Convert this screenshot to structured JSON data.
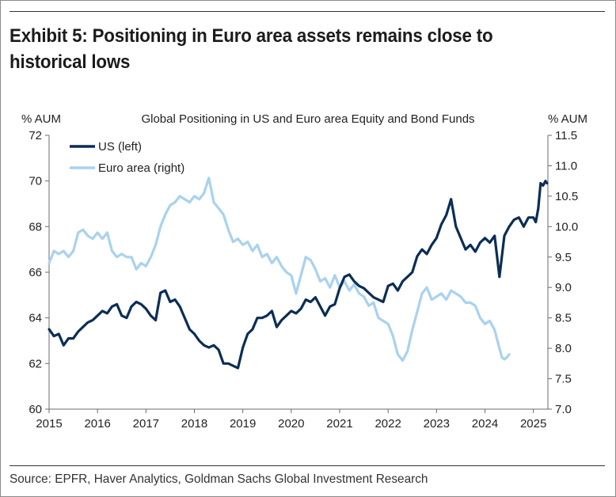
{
  "exhibit_title": "Exhibit 5: Positioning in Euro area assets remains close to historical lows",
  "source": "Source: EPFR, Haver Analytics, Goldman Sachs Global Investment Research",
  "colors": {
    "us": "#0b2d55",
    "euro": "#a9d2ee",
    "axis": "#6b6b6b",
    "text": "#222222"
  },
  "chart_data": {
    "type": "line",
    "title": "Global Positioning in US and Euro area Equity and Bond Funds",
    "ylabel_left": "% AUM",
    "ylabel_right": "% AUM",
    "x_ticks": [
      "2015",
      "2016",
      "2017",
      "2018",
      "2019",
      "2020",
      "2021",
      "2022",
      "2023",
      "2024",
      "2025"
    ],
    "x_range": [
      2015,
      2025.3
    ],
    "ylim_left": [
      60,
      72
    ],
    "ylim_right": [
      7.0,
      11.5
    ],
    "y_ticks_left": [
      "60",
      "62",
      "64",
      "66",
      "68",
      "70",
      "72"
    ],
    "y_ticks_right": [
      "7.0",
      "7.5",
      "8.0",
      "8.5",
      "9.0",
      "9.5",
      "10.0",
      "10.5",
      "11.0",
      "11.5"
    ],
    "legend_placement": "top-left",
    "grid": false,
    "series": [
      {
        "name": "US (left)",
        "axis": "left",
        "color": "#0b2d55",
        "points": [
          [
            2015.0,
            63.5
          ],
          [
            2015.1,
            63.2
          ],
          [
            2015.2,
            63.3
          ],
          [
            2015.3,
            62.8
          ],
          [
            2015.4,
            63.1
          ],
          [
            2015.5,
            63.1
          ],
          [
            2015.6,
            63.4
          ],
          [
            2015.7,
            63.6
          ],
          [
            2015.8,
            63.8
          ],
          [
            2015.9,
            63.9
          ],
          [
            2016.0,
            64.1
          ],
          [
            2016.1,
            64.3
          ],
          [
            2016.2,
            64.2
          ],
          [
            2016.3,
            64.5
          ],
          [
            2016.4,
            64.6
          ],
          [
            2016.5,
            64.1
          ],
          [
            2016.6,
            64.0
          ],
          [
            2016.7,
            64.5
          ],
          [
            2016.8,
            64.7
          ],
          [
            2016.9,
            64.6
          ],
          [
            2017.0,
            64.4
          ],
          [
            2017.1,
            64.1
          ],
          [
            2017.2,
            63.9
          ],
          [
            2017.3,
            65.1
          ],
          [
            2017.4,
            65.2
          ],
          [
            2017.5,
            64.7
          ],
          [
            2017.6,
            64.8
          ],
          [
            2017.7,
            64.5
          ],
          [
            2017.8,
            64.0
          ],
          [
            2017.9,
            63.5
          ],
          [
            2018.0,
            63.3
          ],
          [
            2018.1,
            63.0
          ],
          [
            2018.2,
            62.8
          ],
          [
            2018.3,
            62.7
          ],
          [
            2018.4,
            62.8
          ],
          [
            2018.5,
            62.6
          ],
          [
            2018.6,
            62.0
          ],
          [
            2018.7,
            62.0
          ],
          [
            2018.8,
            61.9
          ],
          [
            2018.9,
            61.8
          ],
          [
            2019.0,
            62.7
          ],
          [
            2019.1,
            63.3
          ],
          [
            2019.2,
            63.5
          ],
          [
            2019.3,
            64.0
          ],
          [
            2019.4,
            64.0
          ],
          [
            2019.5,
            64.1
          ],
          [
            2019.6,
            64.3
          ],
          [
            2019.7,
            63.6
          ],
          [
            2019.8,
            63.9
          ],
          [
            2019.9,
            64.1
          ],
          [
            2020.0,
            64.3
          ],
          [
            2020.1,
            64.2
          ],
          [
            2020.2,
            64.4
          ],
          [
            2020.3,
            64.8
          ],
          [
            2020.4,
            64.7
          ],
          [
            2020.5,
            64.9
          ],
          [
            2020.6,
            64.5
          ],
          [
            2020.7,
            64.1
          ],
          [
            2020.8,
            64.5
          ],
          [
            2020.9,
            64.6
          ],
          [
            2021.0,
            65.3
          ],
          [
            2021.1,
            65.8
          ],
          [
            2021.2,
            65.9
          ],
          [
            2021.3,
            65.6
          ],
          [
            2021.4,
            65.4
          ],
          [
            2021.5,
            65.3
          ],
          [
            2021.6,
            65.1
          ],
          [
            2021.7,
            64.9
          ],
          [
            2021.8,
            64.8
          ],
          [
            2021.9,
            64.7
          ],
          [
            2022.0,
            65.4
          ],
          [
            2022.1,
            65.5
          ],
          [
            2022.2,
            65.2
          ],
          [
            2022.3,
            65.6
          ],
          [
            2022.4,
            65.8
          ],
          [
            2022.5,
            66.0
          ],
          [
            2022.6,
            66.7
          ],
          [
            2022.7,
            67.0
          ],
          [
            2022.8,
            66.8
          ],
          [
            2022.9,
            67.2
          ],
          [
            2023.0,
            67.5
          ],
          [
            2023.1,
            68.1
          ],
          [
            2023.2,
            68.5
          ],
          [
            2023.3,
            69.2
          ],
          [
            2023.4,
            68.0
          ],
          [
            2023.5,
            67.5
          ],
          [
            2023.6,
            67.0
          ],
          [
            2023.7,
            67.2
          ],
          [
            2023.8,
            66.9
          ],
          [
            2023.9,
            67.3
          ],
          [
            2024.0,
            67.5
          ],
          [
            2024.1,
            67.3
          ],
          [
            2024.2,
            67.6
          ],
          [
            2024.3,
            65.8
          ],
          [
            2024.4,
            67.6
          ],
          [
            2024.5,
            68.0
          ],
          [
            2024.6,
            68.3
          ],
          [
            2024.7,
            68.4
          ],
          [
            2024.8,
            68.0
          ],
          [
            2024.9,
            68.4
          ],
          [
            2025.0,
            68.4
          ],
          [
            2025.05,
            68.2
          ],
          [
            2025.1,
            68.8
          ],
          [
            2025.15,
            69.9
          ],
          [
            2025.2,
            69.8
          ],
          [
            2025.25,
            70.0
          ],
          [
            2025.28,
            69.9
          ]
        ]
      },
      {
        "name": "Euro area (right)",
        "axis": "right",
        "color": "#a9d2ee",
        "points": [
          [
            2015.0,
            9.4
          ],
          [
            2015.1,
            9.6
          ],
          [
            2015.2,
            9.55
          ],
          [
            2015.3,
            9.6
          ],
          [
            2015.4,
            9.5
          ],
          [
            2015.5,
            9.6
          ],
          [
            2015.6,
            9.9
          ],
          [
            2015.7,
            9.95
          ],
          [
            2015.8,
            9.85
          ],
          [
            2015.9,
            9.8
          ],
          [
            2016.0,
            9.9
          ],
          [
            2016.1,
            9.8
          ],
          [
            2016.2,
            9.9
          ],
          [
            2016.3,
            9.6
          ],
          [
            2016.4,
            9.5
          ],
          [
            2016.5,
            9.55
          ],
          [
            2016.6,
            9.5
          ],
          [
            2016.7,
            9.5
          ],
          [
            2016.8,
            9.3
          ],
          [
            2016.9,
            9.4
          ],
          [
            2017.0,
            9.35
          ],
          [
            2017.1,
            9.5
          ],
          [
            2017.2,
            9.7
          ],
          [
            2017.3,
            10.0
          ],
          [
            2017.4,
            10.2
          ],
          [
            2017.5,
            10.35
          ],
          [
            2017.6,
            10.4
          ],
          [
            2017.7,
            10.5
          ],
          [
            2017.8,
            10.45
          ],
          [
            2017.9,
            10.4
          ],
          [
            2018.0,
            10.5
          ],
          [
            2018.1,
            10.45
          ],
          [
            2018.2,
            10.55
          ],
          [
            2018.3,
            10.8
          ],
          [
            2018.4,
            10.4
          ],
          [
            2018.5,
            10.3
          ],
          [
            2018.6,
            10.2
          ],
          [
            2018.7,
            9.95
          ],
          [
            2018.8,
            9.75
          ],
          [
            2018.9,
            9.8
          ],
          [
            2019.0,
            9.7
          ],
          [
            2019.1,
            9.75
          ],
          [
            2019.2,
            9.6
          ],
          [
            2019.3,
            9.7
          ],
          [
            2019.4,
            9.5
          ],
          [
            2019.5,
            9.55
          ],
          [
            2019.6,
            9.4
          ],
          [
            2019.7,
            9.5
          ],
          [
            2019.8,
            9.35
          ],
          [
            2019.9,
            9.25
          ],
          [
            2020.0,
            9.2
          ],
          [
            2020.1,
            8.9
          ],
          [
            2020.2,
            9.2
          ],
          [
            2020.3,
            9.5
          ],
          [
            2020.4,
            9.45
          ],
          [
            2020.5,
            9.3
          ],
          [
            2020.6,
            9.1
          ],
          [
            2020.7,
            9.15
          ],
          [
            2020.8,
            9.0
          ],
          [
            2020.9,
            9.2
          ],
          [
            2021.0,
            9.0
          ],
          [
            2021.1,
            9.1
          ],
          [
            2021.2,
            8.95
          ],
          [
            2021.3,
            9.05
          ],
          [
            2021.4,
            8.9
          ],
          [
            2021.5,
            8.85
          ],
          [
            2021.6,
            8.7
          ],
          [
            2021.7,
            8.75
          ],
          [
            2021.8,
            8.5
          ],
          [
            2021.9,
            8.45
          ],
          [
            2022.0,
            8.4
          ],
          [
            2022.1,
            8.2
          ],
          [
            2022.2,
            7.9
          ],
          [
            2022.3,
            7.8
          ],
          [
            2022.4,
            7.95
          ],
          [
            2022.5,
            8.3
          ],
          [
            2022.6,
            8.6
          ],
          [
            2022.7,
            8.9
          ],
          [
            2022.8,
            9.0
          ],
          [
            2022.9,
            8.8
          ],
          [
            2023.0,
            8.85
          ],
          [
            2023.1,
            8.9
          ],
          [
            2023.2,
            8.8
          ],
          [
            2023.3,
            8.95
          ],
          [
            2023.4,
            8.9
          ],
          [
            2023.5,
            8.85
          ],
          [
            2023.6,
            8.75
          ],
          [
            2023.7,
            8.75
          ],
          [
            2023.8,
            8.7
          ],
          [
            2023.9,
            8.5
          ],
          [
            2024.0,
            8.4
          ],
          [
            2024.1,
            8.45
          ],
          [
            2024.2,
            8.3
          ],
          [
            2024.3,
            8.0
          ],
          [
            2024.35,
            7.85
          ],
          [
            2024.4,
            7.82
          ],
          [
            2024.45,
            7.85
          ],
          [
            2024.5,
            7.9
          ]
        ]
      }
    ]
  }
}
